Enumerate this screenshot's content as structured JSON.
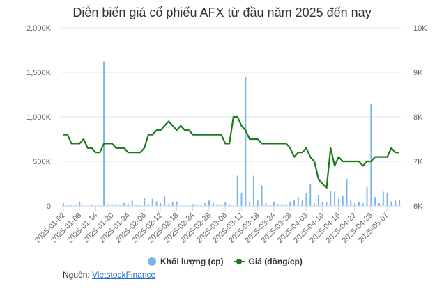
{
  "title": "Diễn biến giá cổ phiếu AFX từ đầu năm 2025 đến nay",
  "legend": {
    "volume_label": "Khối lượng (cp)",
    "price_label": "Giá (đồng/cp)"
  },
  "source": {
    "prefix": "Nguồn: ",
    "link_text": "VietstockFinance"
  },
  "colors": {
    "volume": "#7cb5ec",
    "price": "#1a7a1a",
    "grid": "#e6e6e6",
    "axis_text": "#666666"
  },
  "chart_data": {
    "type": "bar+line",
    "title": "Diễn biến giá cổ phiếu AFX từ đầu năm 2025 đến nay",
    "left_axis": {
      "label": "Khối lượng (cp)",
      "ticks": [
        "0",
        "500K",
        "1,000K",
        "1,500K",
        "2,000K"
      ],
      "range": [
        0,
        2000000
      ]
    },
    "right_axis": {
      "label": "Giá (đồng/cp)",
      "ticks": [
        "6K",
        "7K",
        "8K",
        "9K",
        "10K"
      ],
      "range": [
        6000,
        10000
      ]
    },
    "x_tick_labels": [
      "2025-01-02",
      "2025-01-08",
      "2025-01-14",
      "2025-01-20",
      "2025-01-24",
      "2025-02-06",
      "2025-02-12",
      "2025-02-18",
      "2025-02-24",
      "2025-02-28",
      "2025-03-06",
      "2025-03-12",
      "2025-03-18",
      "2025-03-24",
      "2025-03-28",
      "2025-04-03",
      "2025-04-10",
      "2025-04-16",
      "2025-04-22",
      "2025-04-28",
      "2025-05-07"
    ],
    "grid": true,
    "legend_position": "bottom",
    "series": [
      {
        "name": "Khối lượng (cp)",
        "type": "bar",
        "values": [
          30000,
          10000,
          15000,
          10000,
          50000,
          5000,
          5000,
          10000,
          0,
          15000,
          1620000,
          10000,
          20000,
          20000,
          10000,
          30000,
          20000,
          60000,
          10000,
          10000,
          90000,
          20000,
          80000,
          50000,
          30000,
          110000,
          20000,
          40000,
          50000,
          10000,
          10000,
          5000,
          20000,
          10000,
          5000,
          30000,
          60000,
          30000,
          20000,
          10000,
          40000,
          20000,
          5000,
          340000,
          150000,
          1450000,
          40000,
          340000,
          60000,
          230000,
          30000,
          10000,
          40000,
          20000,
          20000,
          20000,
          40000,
          60000,
          100000,
          60000,
          140000,
          250000,
          30000,
          120000,
          50000,
          40000,
          170000,
          160000,
          80000,
          110000,
          300000,
          60000,
          30000,
          40000,
          30000,
          210000,
          1140000,
          100000,
          30000,
          160000,
          150000,
          50000,
          60000,
          70000
        ]
      },
      {
        "name": "Giá (đồng/cp)",
        "type": "line",
        "values": [
          7600,
          7600,
          7400,
          7400,
          7400,
          7500,
          7300,
          7300,
          7200,
          7200,
          7400,
          7400,
          7400,
          7300,
          7300,
          7300,
          7200,
          7200,
          7200,
          7200,
          7300,
          7600,
          7600,
          7700,
          7700,
          7800,
          7900,
          7800,
          7700,
          7800,
          7700,
          7700,
          7600,
          7600,
          7600,
          7600,
          7600,
          7600,
          7600,
          7600,
          7400,
          7400,
          8000,
          8000,
          7800,
          7700,
          7500,
          7500,
          7500,
          7400,
          7400,
          7400,
          7400,
          7400,
          7400,
          7400,
          7300,
          7100,
          7200,
          7200,
          7300,
          7100,
          7000,
          6600,
          6500,
          6400,
          7300,
          6900,
          7100,
          7000,
          7000,
          7000,
          7000,
          7000,
          6900,
          7000,
          7000,
          7100,
          7100,
          7100,
          7100,
          7300,
          7200,
          7200
        ]
      }
    ]
  }
}
